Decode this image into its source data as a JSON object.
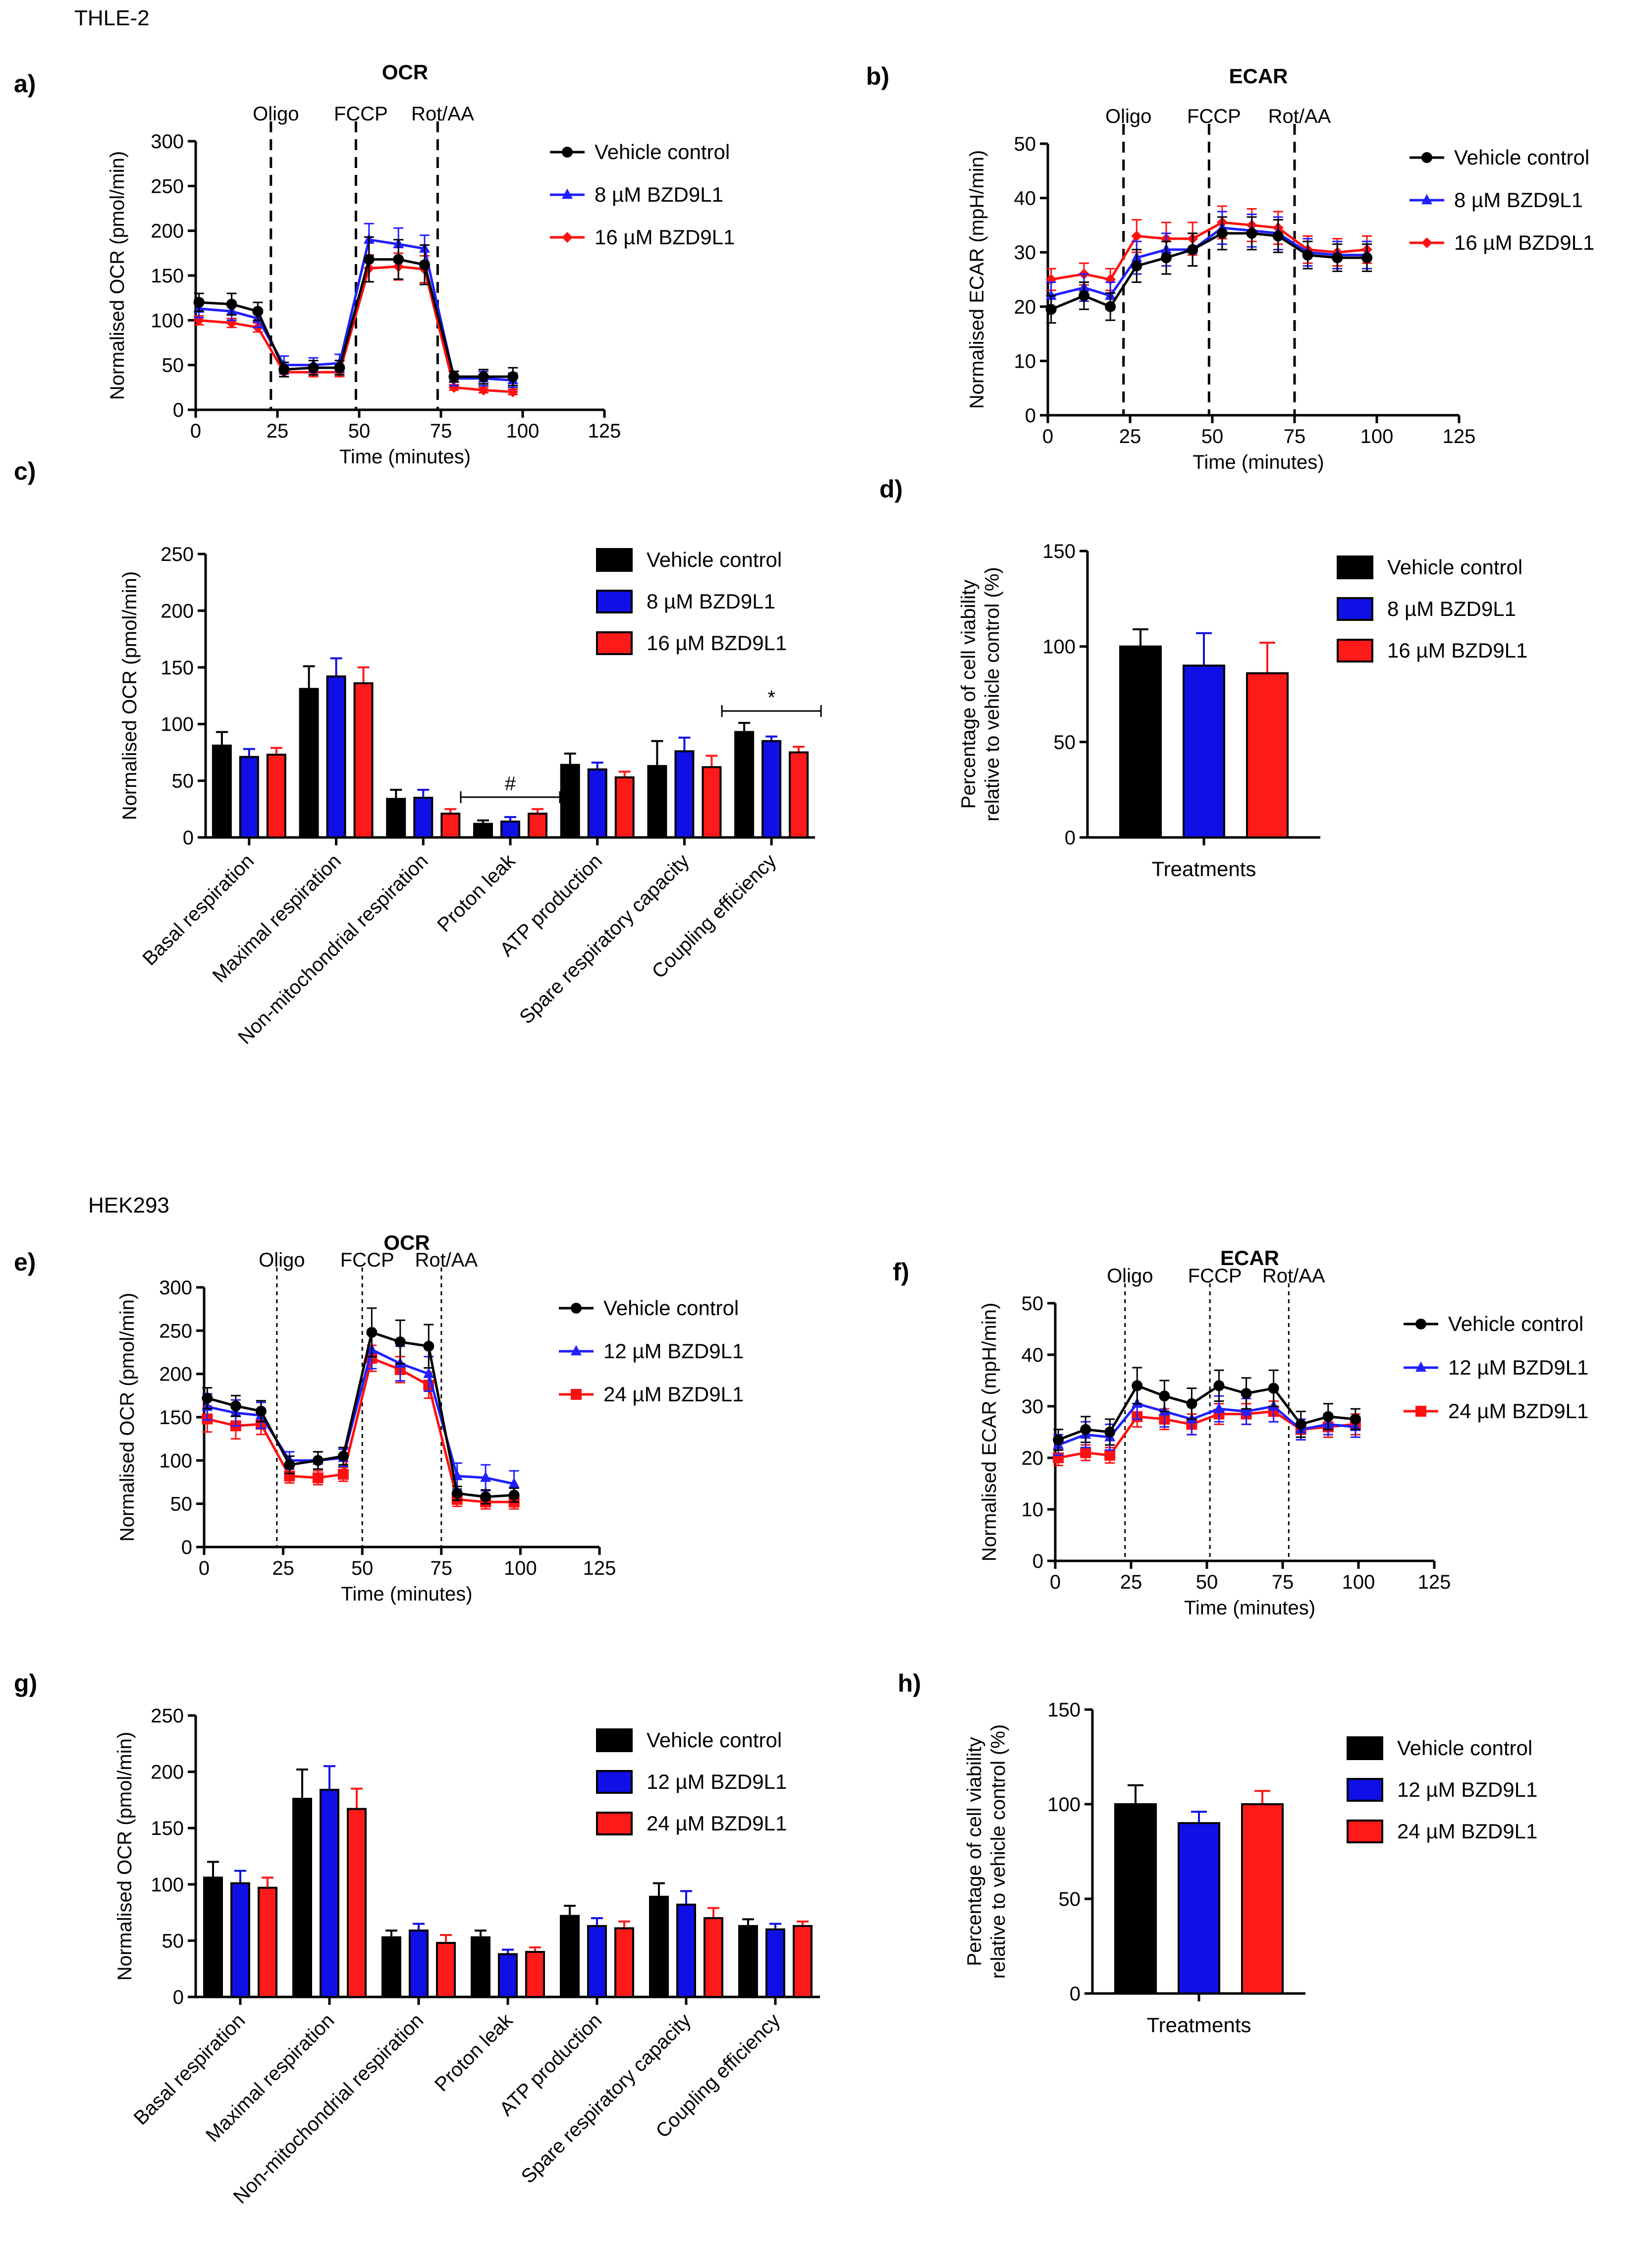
{
  "figure": {
    "sections": [
      {
        "name": "THLE-2",
        "panels": [
          "a)",
          "b)",
          "c)",
          "d)"
        ]
      },
      {
        "name": "HEK293",
        "panels": [
          "e)",
          "f)",
          "g)",
          "h)"
        ]
      }
    ]
  },
  "colors": {
    "vehicle": "#000000",
    "low_dose_line": "#1f1fff",
    "high_dose_line": "#ff1010",
    "low_dose_bar": "#1010e6",
    "high_dose_bar": "#ff1a1a"
  },
  "chart_data": [
    {
      "id": "a",
      "type": "line",
      "title": "OCR",
      "xlabel": "Time (minutes)",
      "ylabel": "Normalised OCR (pmol/min)",
      "xlim": [
        0,
        125
      ],
      "ylim": [
        0,
        300
      ],
      "xticks": [
        0,
        25,
        50,
        75,
        100,
        125
      ],
      "yticks": [
        0,
        50,
        100,
        150,
        200,
        250,
        300
      ],
      "injections": [
        {
          "x": 23,
          "label": "Oligo"
        },
        {
          "x": 49,
          "label": "FCCP"
        },
        {
          "x": 74,
          "label": "Rot/AA"
        }
      ],
      "legend": "right",
      "x": [
        1,
        11,
        19,
        27,
        36,
        44,
        53,
        62,
        70,
        79,
        88,
        97
      ],
      "series": [
        {
          "name": "Vehicle control",
          "marker": "circle",
          "values": [
            120,
            118,
            110,
            45,
            47,
            47,
            168,
            168,
            162,
            37,
            37,
            37
          ],
          "errors": [
            10,
            12,
            10,
            8,
            8,
            8,
            25,
            22,
            22,
            6,
            8,
            10
          ]
        },
        {
          "name": "8 µM BZD9L1",
          "marker": "triangle",
          "values": [
            113,
            110,
            102,
            50,
            50,
            52,
            190,
            185,
            180,
            35,
            35,
            33
          ],
          "errors": [
            10,
            10,
            10,
            10,
            8,
            10,
            18,
            18,
            15,
            8,
            8,
            8
          ]
        },
        {
          "name": "16 µM BZD9L1",
          "marker": "diamond",
          "values": [
            100,
            97,
            92,
            42,
            42,
            42,
            158,
            160,
            157,
            25,
            22,
            20
          ],
          "errors": [
            5,
            5,
            5,
            5,
            5,
            5,
            15,
            15,
            15,
            3,
            3,
            3
          ]
        }
      ]
    },
    {
      "id": "b",
      "type": "line",
      "title": "ECAR",
      "xlabel": "Time (minutes)",
      "ylabel": "Normalised ECAR (mpH/min)",
      "xlim": [
        0,
        125
      ],
      "ylim": [
        0,
        50
      ],
      "xticks": [
        0,
        25,
        50,
        75,
        100,
        125
      ],
      "yticks": [
        0,
        10,
        20,
        30,
        40,
        50
      ],
      "injections": [
        {
          "x": 23,
          "label": "Oligo"
        },
        {
          "x": 49,
          "label": "FCCP"
        },
        {
          "x": 75,
          "label": "Rot/AA"
        }
      ],
      "legend": "right",
      "x": [
        1,
        11,
        19,
        27,
        36,
        44,
        53,
        62,
        70,
        79,
        88,
        97
      ],
      "series": [
        {
          "name": "Vehicle control",
          "marker": "circle",
          "values": [
            19.5,
            22,
            20,
            27.5,
            29,
            30.5,
            33.5,
            33.5,
            33,
            29.5,
            29,
            29
          ],
          "errors": [
            2.5,
            2.5,
            2.5,
            3,
            3,
            3,
            3,
            3,
            3,
            2.5,
            2.5,
            2.5
          ]
        },
        {
          "name": "8 µM BZD9L1",
          "marker": "triangle",
          "values": [
            22,
            23.5,
            22,
            29,
            30.5,
            30.5,
            34.5,
            34,
            33.5,
            30,
            29.5,
            29.5
          ],
          "errors": [
            2.5,
            2.5,
            2.5,
            3,
            3,
            3,
            3,
            3,
            3,
            2.5,
            2.5,
            2.5
          ]
        },
        {
          "name": "16 µM BZD9L1",
          "marker": "diamond",
          "values": [
            25,
            26,
            25,
            33,
            32.5,
            32.5,
            35.5,
            35,
            34.5,
            30.5,
            30,
            30.5
          ],
          "errors": [
            2,
            2,
            2,
            3,
            3,
            3,
            3,
            3,
            3,
            2.5,
            2.5,
            2.5
          ]
        }
      ]
    },
    {
      "id": "c",
      "type": "bar",
      "ylabel": "Normalised OCR (pmol/min)",
      "ylim": [
        0,
        250
      ],
      "yticks": [
        0,
        50,
        100,
        150,
        200,
        250
      ],
      "legend": "top-right",
      "categories": [
        "Basal respiration",
        "Maximal respiration",
        "Non-mitochondrial respiration",
        "Proton leak",
        "ATP production",
        "Spare respiratory capacity",
        "Coupling efficiency"
      ],
      "series": [
        {
          "name": "Vehicle control",
          "values": [
            81,
            131,
            34,
            12,
            64,
            63,
            93
          ],
          "errors": [
            12,
            20,
            8,
            3,
            10,
            22,
            8
          ]
        },
        {
          "name": "8 µM BZD9L1",
          "values": [
            71,
            142,
            35,
            14,
            60,
            76,
            85
          ],
          "errors": [
            7,
            16,
            7,
            4,
            6,
            12,
            4
          ]
        },
        {
          "name": "16 µM BZD9L1",
          "values": [
            73,
            136,
            21,
            21,
            53,
            62,
            75
          ],
          "errors": [
            6,
            14,
            4,
            4,
            5,
            10,
            5
          ]
        }
      ],
      "annotations": [
        {
          "text": "#",
          "category": 3
        },
        {
          "text": "*",
          "category": 6
        }
      ]
    },
    {
      "id": "d",
      "type": "bar",
      "xlabel": "Treatments",
      "ylabel": "Percentage of cell viability relative to vehicle control (%)",
      "ylim": [
        0,
        150
      ],
      "yticks": [
        0,
        50,
        100,
        150
      ],
      "legend": "top-right",
      "categories": [
        "Vehicle control",
        "8 µM BZD9L1",
        "16 µM BZD9L1"
      ],
      "values": [
        100,
        90,
        86
      ],
      "errors": [
        9,
        17,
        16
      ]
    },
    {
      "id": "e",
      "type": "line",
      "title": "OCR",
      "xlabel": "Time (minutes)",
      "ylabel": "Normalised OCR (pmol/min)",
      "xlim": [
        0,
        125
      ],
      "ylim": [
        0,
        300
      ],
      "xticks": [
        0,
        25,
        50,
        75,
        100,
        125
      ],
      "yticks": [
        0,
        50,
        100,
        150,
        200,
        250,
        300
      ],
      "injections": [
        {
          "x": 23,
          "label": "Oligo"
        },
        {
          "x": 50,
          "label": "FCCP"
        },
        {
          "x": 75,
          "label": "Rot/AA"
        }
      ],
      "legend": "right",
      "x": [
        1,
        10,
        18,
        27,
        36,
        44,
        53,
        62,
        71,
        80,
        89,
        98
      ],
      "series": [
        {
          "name": "Vehicle control",
          "marker": "circle",
          "values": [
            172,
            163,
            157,
            95,
            100,
            105,
            248,
            237,
            232,
            62,
            58,
            60
          ],
          "errors": [
            12,
            12,
            12,
            10,
            10,
            10,
            28,
            25,
            25,
            8,
            8,
            8
          ]
        },
        {
          "name": "12 µM BZD9L1",
          "marker": "triangle",
          "values": [
            162,
            155,
            152,
            100,
            100,
            103,
            228,
            212,
            200,
            82,
            80,
            73
          ],
          "errors": [
            15,
            15,
            15,
            10,
            10,
            10,
            22,
            20,
            20,
            15,
            15,
            15
          ]
        },
        {
          "name": "24 µM BZD9L1",
          "marker": "square",
          "values": [
            148,
            140,
            142,
            82,
            80,
            84,
            218,
            205,
            187,
            55,
            52,
            52
          ],
          "errors": [
            15,
            15,
            12,
            8,
            8,
            8,
            15,
            15,
            15,
            8,
            8,
            8
          ]
        }
      ]
    },
    {
      "id": "f",
      "type": "line",
      "title": "ECAR",
      "xlabel": "Time (minutes)",
      "ylabel": "Normalised ECAR (mpH/min)",
      "xlim": [
        0,
        125
      ],
      "ylim": [
        0,
        50
      ],
      "xticks": [
        0,
        25,
        50,
        75,
        100,
        125
      ],
      "yticks": [
        0,
        10,
        20,
        30,
        40,
        50
      ],
      "injections": [
        {
          "x": 23,
          "label": "Oligo"
        },
        {
          "x": 51,
          "label": "FCCP"
        },
        {
          "x": 77,
          "label": "Rot/AA"
        }
      ],
      "legend": "right",
      "x": [
        1,
        10,
        18,
        27,
        36,
        45,
        54,
        63,
        72,
        81,
        90,
        99
      ],
      "series": [
        {
          "name": "Vehicle control",
          "marker": "circle",
          "values": [
            23.5,
            25.5,
            25,
            34,
            32,
            30.5,
            34,
            32.5,
            33.5,
            26.5,
            28,
            27.5
          ],
          "errors": [
            2,
            2.5,
            2.5,
            3.5,
            3,
            3,
            3,
            3,
            3.5,
            2.5,
            2.5,
            2
          ]
        },
        {
          "name": "12 µM BZD9L1",
          "marker": "triangle",
          "values": [
            22.5,
            24.5,
            24,
            30.5,
            29,
            27.5,
            29.5,
            29,
            30,
            25.5,
            26.5,
            26
          ],
          "errors": [
            2,
            2.5,
            2.5,
            3,
            3,
            3,
            2.5,
            2.5,
            3,
            2,
            2,
            2
          ]
        },
        {
          "name": "24 µM BZD9L1",
          "marker": "square",
          "values": [
            20,
            21,
            20.5,
            28,
            27.5,
            26.5,
            28.5,
            28.5,
            29,
            25.5,
            26,
            26.5
          ],
          "errors": [
            1.5,
            1.5,
            1.5,
            2,
            2,
            2,
            2,
            2,
            2,
            2,
            2,
            2
          ]
        }
      ]
    },
    {
      "id": "g",
      "type": "bar",
      "ylabel": "Normalised OCR (pmol/min)",
      "ylim": [
        0,
        250
      ],
      "yticks": [
        0,
        50,
        100,
        150,
        200,
        250
      ],
      "legend": "top-right",
      "categories": [
        "Basal respiration",
        "Maximal respiration",
        "Non-mitochondrial respiration",
        "Proton leak",
        "ATP production",
        "Spare respiratory capacity",
        "Coupling efficiency"
      ],
      "series": [
        {
          "name": "Vehicle control",
          "values": [
            106,
            176,
            53,
            53,
            72,
            89,
            63
          ],
          "errors": [
            14,
            26,
            6,
            6,
            9,
            12,
            6
          ]
        },
        {
          "name": "12 µM BZD9L1",
          "values": [
            101,
            184,
            59,
            38,
            63,
            82,
            60
          ],
          "errors": [
            11,
            21,
            6,
            4,
            7,
            12,
            5
          ]
        },
        {
          "name": "24 µM BZD9L1",
          "values": [
            97,
            167,
            48,
            40,
            61,
            70,
            63
          ],
          "errors": [
            9,
            18,
            7,
            4,
            6,
            9,
            4
          ]
        }
      ]
    },
    {
      "id": "h",
      "type": "bar",
      "xlabel": "Treatments",
      "ylabel": "Percentage of cell viability relative to vehicle control (%)",
      "ylim": [
        0,
        150
      ],
      "yticks": [
        0,
        50,
        100,
        150
      ],
      "legend": "top-right",
      "categories": [
        "Vehicle control",
        "12 µM BZD9L1",
        "24 µM BZD9L1"
      ],
      "values": [
        100,
        90,
        100
      ],
      "errors": [
        10,
        6,
        7
      ]
    }
  ]
}
